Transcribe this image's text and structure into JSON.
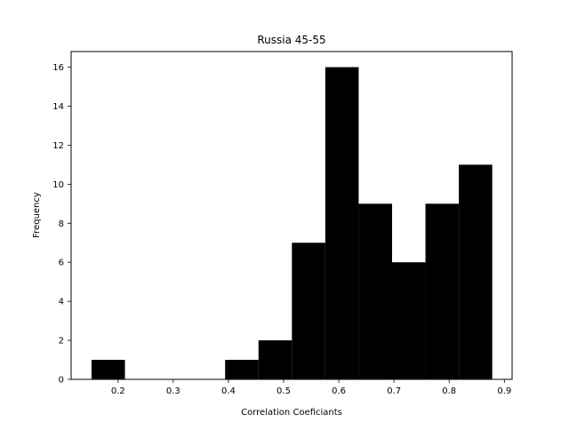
{
  "chart_data": {
    "type": "bar",
    "subtype": "histogram",
    "title": "Russia 45-55",
    "xlabel": "Correlation Coeficiants",
    "ylabel": "Frequency",
    "bins": [
      {
        "x0": 0.152,
        "x1": 0.2125,
        "value": 1
      },
      {
        "x0": 0.2125,
        "x1": 0.273,
        "value": 0
      },
      {
        "x0": 0.273,
        "x1": 0.3335,
        "value": 0
      },
      {
        "x0": 0.3335,
        "x1": 0.394,
        "value": 0
      },
      {
        "x0": 0.394,
        "x1": 0.4545,
        "value": 1
      },
      {
        "x0": 0.4545,
        "x1": 0.515,
        "value": 2
      },
      {
        "x0": 0.515,
        "x1": 0.5755,
        "value": 7
      },
      {
        "x0": 0.5755,
        "x1": 0.636,
        "value": 16
      },
      {
        "x0": 0.636,
        "x1": 0.6965,
        "value": 9
      },
      {
        "x0": 0.6965,
        "x1": 0.757,
        "value": 6
      },
      {
        "x0": 0.757,
        "x1": 0.8175,
        "value": 9
      },
      {
        "x0": 0.8175,
        "x1": 0.878,
        "value": 11
      }
    ],
    "xlim": [
      0.115,
      0.914
    ],
    "ylim": [
      0,
      16.8
    ],
    "xticks": [
      "0.2",
      "0.3",
      "0.4",
      "0.5",
      "0.6",
      "0.7",
      "0.8",
      "0.9"
    ],
    "xtick_values": [
      0.2,
      0.3,
      0.4,
      0.5,
      0.6,
      0.7,
      0.8,
      0.9
    ],
    "yticks": [
      "0",
      "2",
      "4",
      "6",
      "8",
      "10",
      "12",
      "14",
      "16"
    ],
    "ytick_values": [
      0,
      2,
      4,
      6,
      8,
      10,
      12,
      14,
      16
    ],
    "bar_color": "#000000",
    "grid": false,
    "legend": "none"
  }
}
